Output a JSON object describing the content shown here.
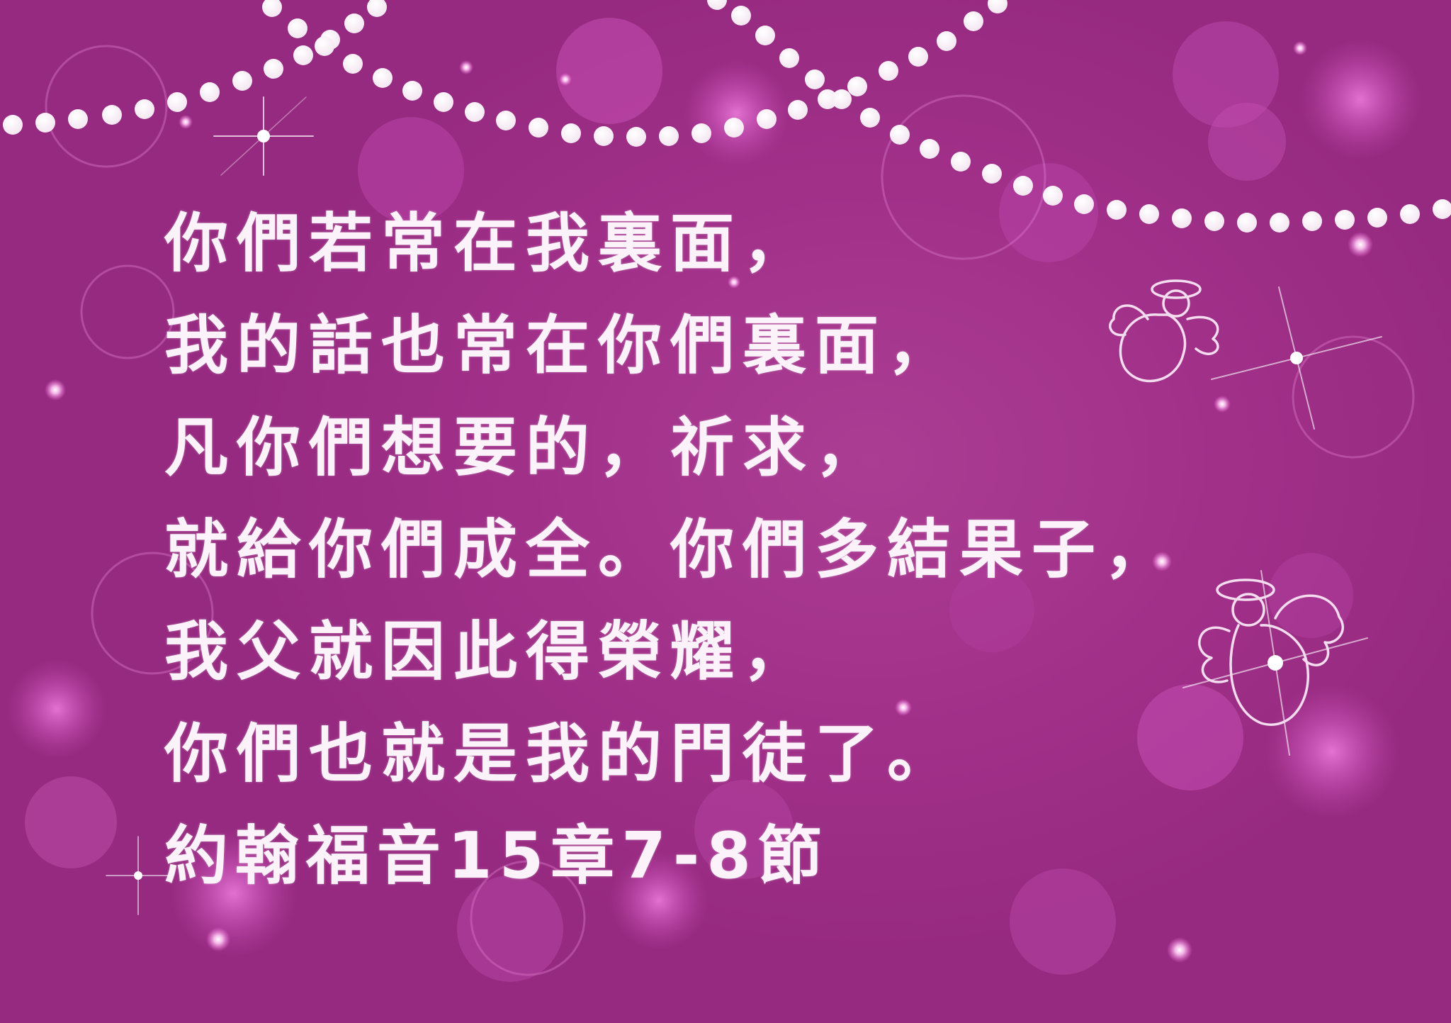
{
  "verse": {
    "lines": [
      "你們若常在我裏面，",
      "我的話也常在你們裏面，",
      "凡你們想要的，祈求，",
      "就給你們成全。你們多結果子，",
      "我父就因此得榮耀，",
      "你們也就是我的門徒了。"
    ],
    "reference": "約翰福音15章7-8節"
  },
  "colors": {
    "background": "#a13089",
    "text": "#fbf2fa",
    "bokeh": "#e56bd6",
    "pearl": "#ffffff"
  },
  "decorations": {
    "pearl_strands": "pearl-garland",
    "angels": [
      "angel-outline",
      "angel-outline"
    ],
    "sparkles": "star-sparkle"
  }
}
